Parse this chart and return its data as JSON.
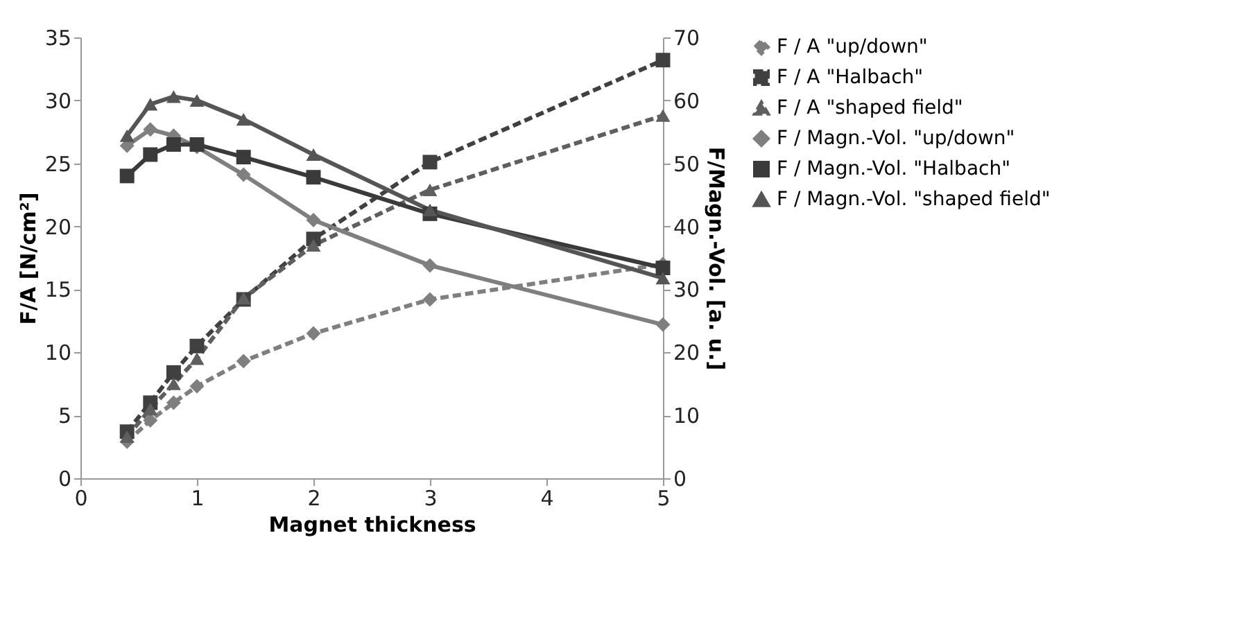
{
  "chart_data": {
    "type": "line",
    "xlabel": "Magnet thickness",
    "ylabel": "F/A [N/cm²]",
    "y2label": "F/Magn.-Vol. [a. u.]",
    "x": [
      0.4,
      0.6,
      0.8,
      1,
      1.4,
      2,
      3,
      5
    ],
    "xlim": [
      0,
      5
    ],
    "xticks": [
      0,
      1,
      2,
      3,
      4,
      5
    ],
    "ylim": [
      0,
      35
    ],
    "yticks": [
      0,
      5,
      10,
      15,
      20,
      25,
      30,
      35
    ],
    "y2lim": [
      0,
      70
    ],
    "y2ticks": [
      0,
      10,
      20,
      30,
      40,
      50,
      60,
      70
    ],
    "grid": false,
    "legend": "right",
    "series": [
      {
        "name": "F / A \"up/down\"",
        "color": "#7f7f7f",
        "marker": "diamond",
        "line_style": "dashed",
        "values": [
          2.9,
          4.6,
          6.0,
          7.3,
          9.3,
          11.5,
          14.2,
          17.0
        ]
      },
      {
        "name": "F / A \"Halbach\"",
        "color": "#404040",
        "marker": "square",
        "line_style": "dashed",
        "values": [
          3.7,
          6.0,
          8.4,
          10.5,
          14.2,
          19.0,
          25.1,
          33.2
        ]
      },
      {
        "name": "F / A \"shaped field\"",
        "color": "#5f5f5f",
        "marker": "triangle",
        "line_style": "dashed",
        "values": [
          3.3,
          5.5,
          7.5,
          9.5,
          14.3,
          18.5,
          22.9,
          28.8
        ]
      },
      {
        "name": "F / Magn.-Vol. \"up/down\"",
        "color": "#7f7f7f",
        "marker": "diamond",
        "line_style": "solid",
        "axis": "y2",
        "values": [
          52.8,
          55.4,
          54.4,
          52.6,
          48.2,
          41.0,
          33.8,
          24.4
        ]
      },
      {
        "name": "F / Magn.-Vol. \"Halbach\"",
        "color": "#3a3a3a",
        "marker": "square",
        "line_style": "solid",
        "axis": "y2",
        "values": [
          48.0,
          51.4,
          53.0,
          53.0,
          51.0,
          47.8,
          42.0,
          33.4
        ]
      },
      {
        "name": "F / Magn.-Vol. \"shaped field\"",
        "color": "#555555",
        "marker": "triangle",
        "line_style": "solid",
        "axis": "y2",
        "values": [
          54.4,
          59.4,
          60.6,
          60.0,
          57.0,
          51.4,
          42.6,
          31.8
        ]
      }
    ]
  }
}
